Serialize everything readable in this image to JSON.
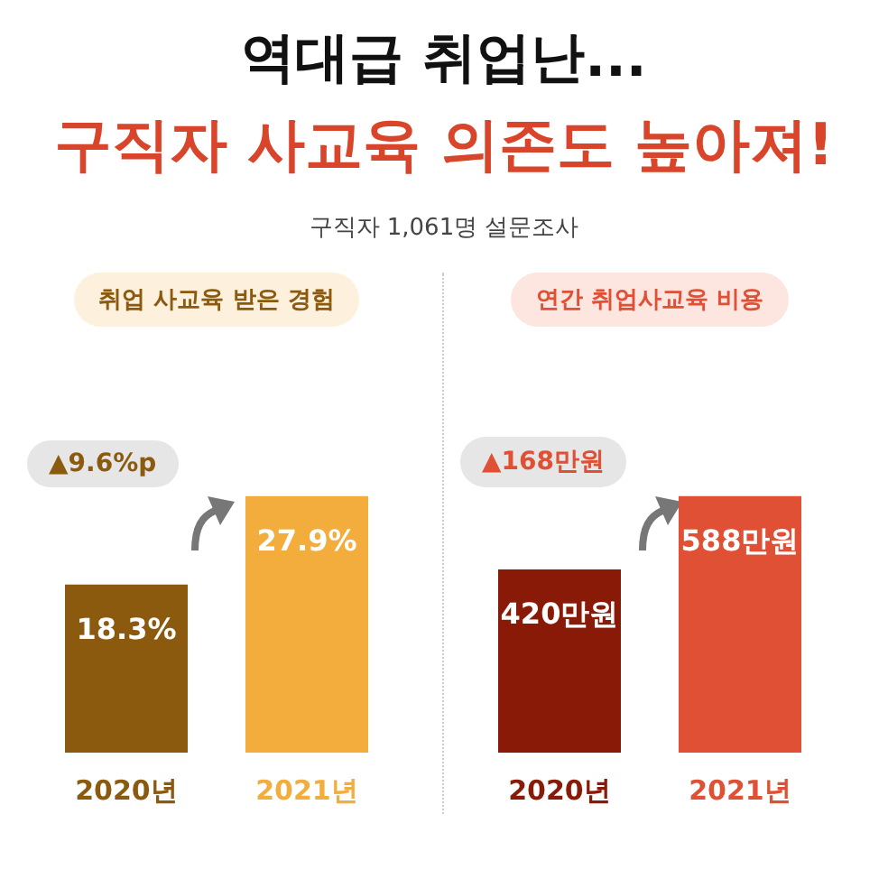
{
  "chart_data": [
    {
      "type": "bar",
      "title": "역대급 취업난...",
      "subtitle": "구직자 사교육 의존도 높아져!",
      "annotations": [
        "구직자 1,061명 설문조사",
        "취업 사교육 받은 경험",
        "▲9.6%p"
      ],
      "categories": [
        "2020년",
        "2021년"
      ],
      "values": [
        18.3,
        27.9
      ],
      "value_labels": [
        "18.3%",
        "27.9%"
      ],
      "colors": [
        "#8c5a0f",
        "#f2ad3c"
      ]
    },
    {
      "type": "bar",
      "annotations": [
        "연간 취업사교육 비용",
        "▲168만원"
      ],
      "categories": [
        "2020년",
        "2021년"
      ],
      "values": [
        420,
        588
      ],
      "value_labels": [
        "420만원",
        "588만원"
      ],
      "colors": [
        "#8a1a08",
        "#e05035"
      ]
    }
  ]
}
